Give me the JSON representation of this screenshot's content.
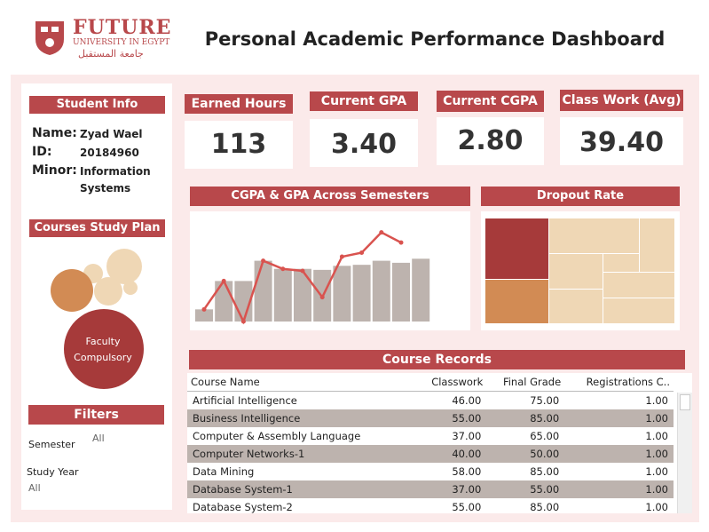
{
  "header": {
    "logo_name": "FUTURE",
    "logo_subtitle": "UNIVERSITY IN EGYPT",
    "logo_arabic": "جامعة المستقبل",
    "title": "Personal Academic Performance Dashboard"
  },
  "student_info": {
    "heading": "Student Info",
    "name_label": "Name:",
    "name_value": "Zyad Wael",
    "id_label": "ID:",
    "id_value": "20184960",
    "minor_label": "Minor:",
    "minor_value_line1": "Information",
    "minor_value_line2": "Systems"
  },
  "study_plan": {
    "heading": "Courses Study Plan",
    "main_label_line1": "Faculty",
    "main_label_line2": "Compulsory"
  },
  "filters": {
    "heading": "Filters",
    "semester_label": "Semester",
    "semester_value": "All",
    "year_label": "Study Year",
    "year_value": "All"
  },
  "kpis": [
    {
      "label": "Earned Hours",
      "value": "113"
    },
    {
      "label": "Current GPA",
      "value": "3.40"
    },
    {
      "label": "Current CGPA",
      "value": "2.80"
    },
    {
      "label": "Class Work (Avg)",
      "value": "39.40"
    }
  ],
  "gpa_chart_heading": "CGPA & GPA Across Semesters",
  "dropout_heading": "Dropout Rate",
  "records": {
    "heading": "Course Records",
    "columns": [
      "Course Name",
      "Classwork",
      "Final Grade",
      "Registrations C.."
    ],
    "rows": [
      {
        "name": "Artificial Intelligence",
        "classwork": "46.00",
        "final": "75.00",
        "reg": "1.00"
      },
      {
        "name": "Business Intelligence",
        "classwork": "55.00",
        "final": "85.00",
        "reg": "1.00"
      },
      {
        "name": "Computer & Assembly Language",
        "classwork": "37.00",
        "final": "65.00",
        "reg": "1.00"
      },
      {
        "name": "Computer Networks-1",
        "classwork": "40.00",
        "final": "50.00",
        "reg": "1.00"
      },
      {
        "name": "Data Mining",
        "classwork": "58.00",
        "final": "85.00",
        "reg": "1.00"
      },
      {
        "name": "Database System-1",
        "classwork": "37.00",
        "final": "55.00",
        "reg": "1.00"
      },
      {
        "name": "Database System-2",
        "classwork": "55.00",
        "final": "85.00",
        "reg": "1.00"
      }
    ]
  },
  "colors": {
    "accent": "#b8484b",
    "bar": "#bdb3ae",
    "line": "#d9534f",
    "panel_bg": "#fbeaea",
    "dark_red": "#a63a3a",
    "orange": "#d28b54",
    "beige": "#efd7b5"
  },
  "chart_data": {
    "type": "bar",
    "categories": [
      "",
      "",
      "",
      "",
      "",
      "",
      "",
      "",
      "",
      "",
      "",
      ""
    ],
    "series": [
      {
        "values": [
          0.6,
          2.0,
          2.0,
          3.0,
          2.6,
          2.6,
          2.55,
          2.75,
          2.8,
          3.0,
          2.9,
          3.1
        ]
      },
      {
        "values": [
          0.6,
          2.0,
          0.0,
          3.0,
          2.6,
          2.5,
          1.2,
          3.2,
          3.4,
          4.4,
          3.9,
          0
        ]
      }
    ],
    "line_point_count": 11,
    "ylim": [
      0,
      5
    ],
    "grid": false
  },
  "dropout_treemap": {
    "type": "treemap",
    "cells": [
      {
        "color": "dark_red"
      },
      {
        "color": "orange"
      },
      {
        "color": "beige"
      },
      {
        "color": "beige"
      },
      {
        "color": "beige"
      },
      {
        "color": "beige"
      },
      {
        "color": "beige"
      },
      {
        "color": "beige"
      },
      {
        "color": "beige"
      },
      {
        "color": "beige"
      },
      {
        "color": "beige"
      }
    ]
  },
  "bubbles": {
    "main_color": "dark_red",
    "secondary_color": "orange",
    "minor_color": "beige"
  }
}
